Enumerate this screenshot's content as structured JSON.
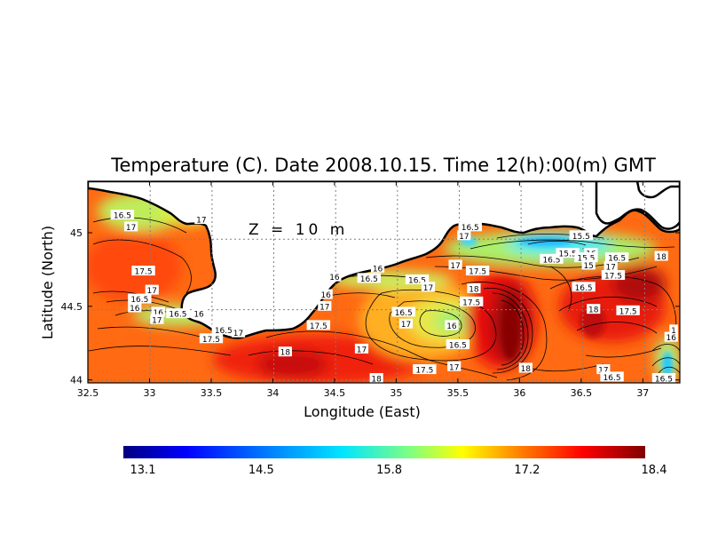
{
  "chart_data": {
    "type": "heatmap",
    "title": "Temperature (C). Date 2008.10.15. Time 12(h):00(m) GMT",
    "xlabel": "Longitude (East)",
    "ylabel": "Latitude (North)",
    "annotation": "Z = 10 m",
    "xlim": [
      32.5,
      37.3
    ],
    "ylim": [
      43.98,
      45.35
    ],
    "x_ticks": [
      32.5,
      33,
      33.5,
      34,
      34.5,
      35,
      35.5,
      36,
      36.5,
      37
    ],
    "x_tick_labels": [
      "32.5",
      "33",
      "33.5",
      "34",
      "34.5",
      "35",
      "35.5",
      "36",
      "36.5",
      "37"
    ],
    "y_ticks": [
      44,
      44.5,
      45
    ],
    "y_tick_labels": [
      "44",
      "44.5",
      "45"
    ],
    "grid": true,
    "colorbar": {
      "min": 13.1,
      "max": 18.4,
      "tick_values": [
        13.1,
        14.5,
        15.8,
        17.2,
        18.4
      ],
      "tick_labels": [
        "13.1",
        "14.5",
        "15.8",
        "17.2",
        "18.4"
      ],
      "colors": [
        "#000080",
        "#0000ff",
        "#0080ff",
        "#00e5ff",
        "#80ff80",
        "#ffff00",
        "#ff8000",
        "#ff0000",
        "#800000"
      ]
    },
    "contour_labels": [
      {
        "lon": 32.78,
        "lat": 45.12,
        "label": "16.5"
      },
      {
        "lon": 32.85,
        "lat": 45.04,
        "label": "17"
      },
      {
        "lon": 33.42,
        "lat": 45.09,
        "label": "17"
      },
      {
        "lon": 32.95,
        "lat": 44.74,
        "label": "17.5"
      },
      {
        "lon": 33.02,
        "lat": 44.61,
        "label": "17"
      },
      {
        "lon": 32.92,
        "lat": 44.55,
        "label": "16.5"
      },
      {
        "lon": 32.88,
        "lat": 44.49,
        "label": "16"
      },
      {
        "lon": 33.07,
        "lat": 44.46,
        "label": "16"
      },
      {
        "lon": 33.06,
        "lat": 44.41,
        "label": "17"
      },
      {
        "lon": 33.23,
        "lat": 44.45,
        "label": "16.5"
      },
      {
        "lon": 33.4,
        "lat": 44.45,
        "label": "16"
      },
      {
        "lon": 33.6,
        "lat": 44.34,
        "label": "16.5"
      },
      {
        "lon": 33.5,
        "lat": 44.28,
        "label": "17.5"
      },
      {
        "lon": 33.72,
        "lat": 44.32,
        "label": "17"
      },
      {
        "lon": 34.43,
        "lat": 44.58,
        "label": "16"
      },
      {
        "lon": 34.42,
        "lat": 44.5,
        "label": "17"
      },
      {
        "lon": 34.37,
        "lat": 44.37,
        "label": "17.5"
      },
      {
        "lon": 34.5,
        "lat": 44.7,
        "label": "16"
      },
      {
        "lon": 34.85,
        "lat": 44.76,
        "label": "16"
      },
      {
        "lon": 34.78,
        "lat": 44.69,
        "label": "16.5"
      },
      {
        "lon": 35.17,
        "lat": 44.68,
        "label": "16.5"
      },
      {
        "lon": 35.26,
        "lat": 44.63,
        "label": "17"
      },
      {
        "lon": 35.48,
        "lat": 44.78,
        "label": "17"
      },
      {
        "lon": 35.66,
        "lat": 44.74,
        "label": "17.5"
      },
      {
        "lon": 35.63,
        "lat": 44.62,
        "label": "18"
      },
      {
        "lon": 35.61,
        "lat": 44.53,
        "label": "17.5"
      },
      {
        "lon": 35.06,
        "lat": 44.46,
        "label": "16.5"
      },
      {
        "lon": 35.45,
        "lat": 44.37,
        "label": "16"
      },
      {
        "lon": 35.5,
        "lat": 44.24,
        "label": "16.5"
      },
      {
        "lon": 35.08,
        "lat": 44.38,
        "label": "17"
      },
      {
        "lon": 34.1,
        "lat": 44.19,
        "label": "18"
      },
      {
        "lon": 34.72,
        "lat": 44.21,
        "label": "17"
      },
      {
        "lon": 35.23,
        "lat": 44.07,
        "label": "17.5"
      },
      {
        "lon": 35.47,
        "lat": 44.09,
        "label": "17"
      },
      {
        "lon": 34.84,
        "lat": 44.01,
        "label": "18"
      },
      {
        "lon": 36.05,
        "lat": 44.08,
        "label": "18"
      },
      {
        "lon": 35.6,
        "lat": 45.04,
        "label": "16.5"
      },
      {
        "lon": 35.55,
        "lat": 44.98,
        "label": "17"
      },
      {
        "lon": 36.26,
        "lat": 44.82,
        "label": "16.5"
      },
      {
        "lon": 36.5,
        "lat": 44.98,
        "label": "15.5"
      },
      {
        "lon": 36.39,
        "lat": 44.86,
        "label": "15.5"
      },
      {
        "lon": 36.58,
        "lat": 44.86,
        "label": "16"
      },
      {
        "lon": 36.54,
        "lat": 44.83,
        "label": "15.5"
      },
      {
        "lon": 36.56,
        "lat": 44.78,
        "label": "15"
      },
      {
        "lon": 36.74,
        "lat": 44.77,
        "label": "17"
      },
      {
        "lon": 36.79,
        "lat": 44.83,
        "label": "16.5"
      },
      {
        "lon": 36.76,
        "lat": 44.71,
        "label": "17.5"
      },
      {
        "lon": 36.52,
        "lat": 44.63,
        "label": "16.5"
      },
      {
        "lon": 36.6,
        "lat": 44.48,
        "label": "18"
      },
      {
        "lon": 36.88,
        "lat": 44.47,
        "label": "17.5"
      },
      {
        "lon": 37.15,
        "lat": 44.84,
        "label": "18"
      },
      {
        "lon": 37.23,
        "lat": 44.29,
        "label": "16"
      },
      {
        "lon": 37.25,
        "lat": 44.34,
        "label": "1"
      },
      {
        "lon": 36.68,
        "lat": 44.07,
        "label": "17"
      },
      {
        "lon": 36.75,
        "lat": 44.02,
        "label": "16.5"
      },
      {
        "lon": 37.17,
        "lat": 44.01,
        "label": "16.5"
      }
    ]
  }
}
